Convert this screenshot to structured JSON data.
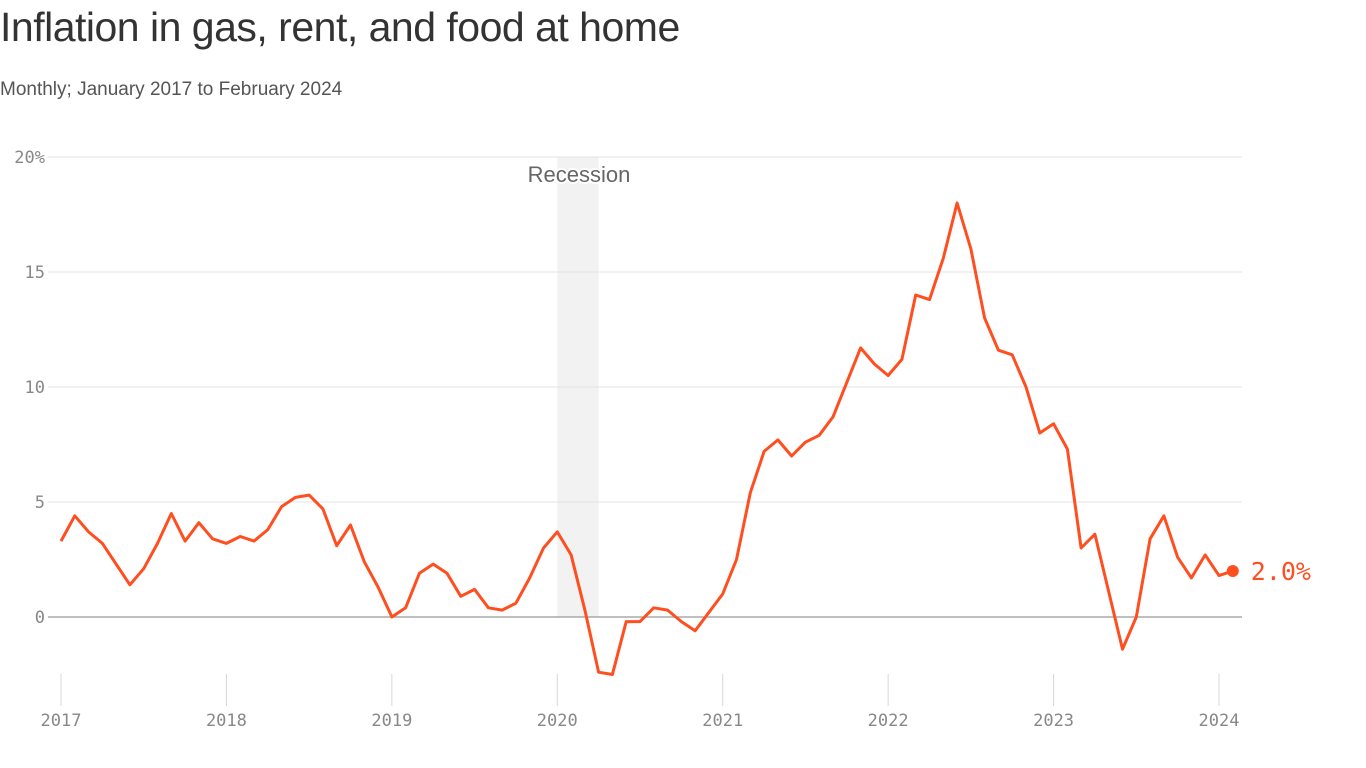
{
  "chart_data": {
    "type": "line",
    "title": "Inflation in gas, rent, and food at home",
    "subtitle": "Monthly; January 2017 to February 2024",
    "xlabel": "",
    "ylabel": "",
    "ylim": [
      -3,
      20
    ],
    "y_ticks": [
      0,
      5,
      10,
      15,
      20
    ],
    "y_tick_labels": [
      "0",
      "5",
      "10",
      "15",
      "20%"
    ],
    "x_tick_labels": [
      "2017",
      "2018",
      "2019",
      "2020",
      "2021",
      "2022",
      "2023",
      "2024"
    ],
    "grid": true,
    "line_color": "#ff4e1f",
    "recession": {
      "label": "Recession",
      "start": "2020-01",
      "end": "2020-04",
      "color": "#f2f2f2"
    },
    "end_label": "2.0%",
    "x": [
      "2017-01",
      "2017-02",
      "2017-03",
      "2017-04",
      "2017-05",
      "2017-06",
      "2017-07",
      "2017-08",
      "2017-09",
      "2017-10",
      "2017-11",
      "2017-12",
      "2018-01",
      "2018-02",
      "2018-03",
      "2018-04",
      "2018-05",
      "2018-06",
      "2018-07",
      "2018-08",
      "2018-09",
      "2018-10",
      "2018-11",
      "2018-12",
      "2019-01",
      "2019-02",
      "2019-03",
      "2019-04",
      "2019-05",
      "2019-06",
      "2019-07",
      "2019-08",
      "2019-09",
      "2019-10",
      "2019-11",
      "2019-12",
      "2020-01",
      "2020-02",
      "2020-03",
      "2020-04",
      "2020-05",
      "2020-06",
      "2020-07",
      "2020-08",
      "2020-09",
      "2020-10",
      "2020-11",
      "2020-12",
      "2021-01",
      "2021-02",
      "2021-03",
      "2021-04",
      "2021-05",
      "2021-06",
      "2021-07",
      "2021-08",
      "2021-09",
      "2021-10",
      "2021-11",
      "2021-12",
      "2022-01",
      "2022-02",
      "2022-03",
      "2022-04",
      "2022-05",
      "2022-06",
      "2022-07",
      "2022-08",
      "2022-09",
      "2022-10",
      "2022-11",
      "2022-12",
      "2023-01",
      "2023-02",
      "2023-03",
      "2023-04",
      "2023-05",
      "2023-06",
      "2023-07",
      "2023-08",
      "2023-09",
      "2023-10",
      "2023-11",
      "2023-12",
      "2024-01",
      "2024-02"
    ],
    "values": [
      3.3,
      4.4,
      3.7,
      3.2,
      2.3,
      1.4,
      2.1,
      3.2,
      4.5,
      3.3,
      4.1,
      3.4,
      3.2,
      3.5,
      3.3,
      3.8,
      4.8,
      5.2,
      5.3,
      4.7,
      3.1,
      4.0,
      2.4,
      1.3,
      0.0,
      0.4,
      1.9,
      2.3,
      1.9,
      0.9,
      1.2,
      0.4,
      0.3,
      0.6,
      1.7,
      3.0,
      3.7,
      2.7,
      0.3,
      -2.4,
      -2.5,
      -0.2,
      -0.2,
      0.4,
      0.3,
      -0.2,
      -0.6,
      0.2,
      1.0,
      2.5,
      5.4,
      7.2,
      7.7,
      7.0,
      7.6,
      7.9,
      8.7,
      10.2,
      11.7,
      11.0,
      10.5,
      11.2,
      14.0,
      13.8,
      15.6,
      18.0,
      16.0,
      13.0,
      11.6,
      11.4,
      10.0,
      8.0,
      8.4,
      7.3,
      3.0,
      3.6,
      1.1,
      -1.4,
      0.0,
      3.4,
      4.4,
      2.6,
      1.7,
      2.7,
      1.8,
      2.0
    ]
  }
}
